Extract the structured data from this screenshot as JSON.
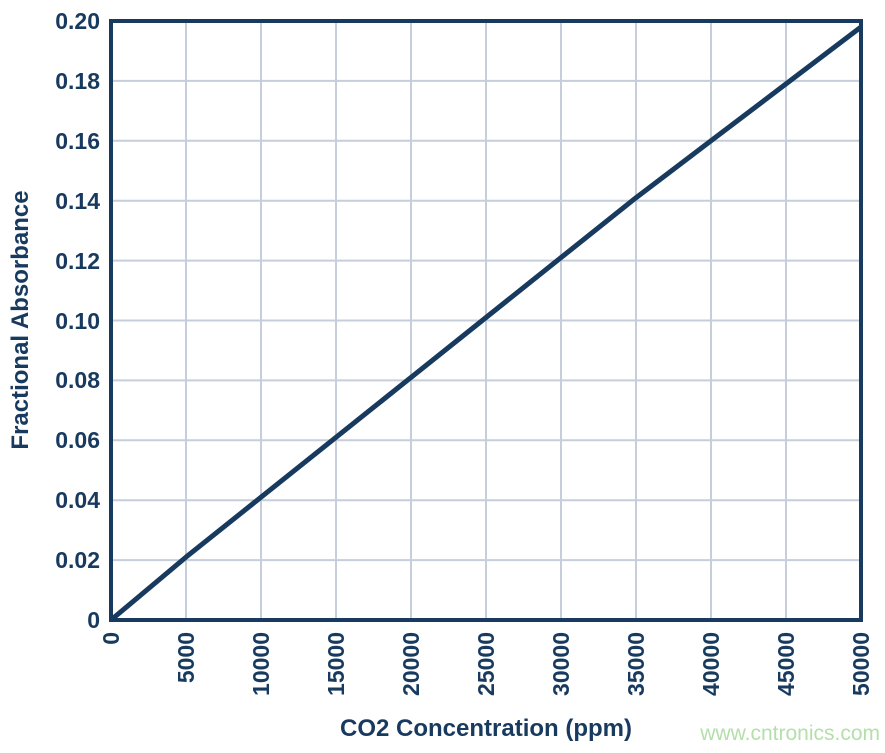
{
  "chart_data": {
    "type": "line",
    "title": "",
    "xlabel": "CO2 Concentration (ppm)",
    "ylabel": "Fractional Absorbance",
    "x": [
      0,
      5000,
      10000,
      15000,
      20000,
      25000,
      30000,
      35000,
      40000,
      45000,
      50000
    ],
    "series": [
      {
        "name": "Fractional Absorbance",
        "values": [
          0,
          0.021,
          0.041,
          0.061,
          0.081,
          0.101,
          0.121,
          0.141,
          0.16,
          0.179,
          0.198
        ]
      }
    ],
    "xlim": [
      0,
      50000
    ],
    "ylim": [
      0,
      0.2
    ],
    "xticks": [
      0,
      5000,
      10000,
      15000,
      20000,
      25000,
      30000,
      35000,
      40000,
      45000,
      50000
    ],
    "xtick_labels": [
      "0",
      "5000",
      "10000",
      "15000",
      "20000",
      "25000",
      "30000",
      "35000",
      "40000",
      "45000",
      "50000"
    ],
    "yticks": [
      0,
      0.02,
      0.04,
      0.06,
      0.08,
      0.1,
      0.12,
      0.14,
      0.16,
      0.18,
      0.2
    ],
    "ytick_labels": [
      "0",
      "0.02",
      "0.04",
      "0.06",
      "0.08",
      "0.10",
      "0.12",
      "0.14",
      "0.16",
      "0.18",
      "0.20"
    ],
    "grid": true,
    "legend": false,
    "colors": {
      "line": "#173A5E",
      "axis": "#173A5E",
      "grid": "#C6CEDC",
      "text": "#173A5E",
      "background": "#FFFFFF"
    }
  },
  "watermark": {
    "text": "www.cntronics.com",
    "color": "#B4DFAA"
  }
}
